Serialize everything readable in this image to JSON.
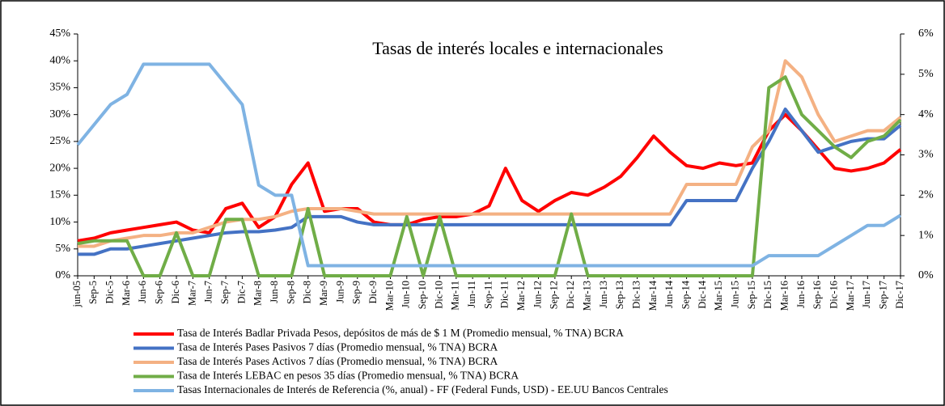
{
  "chart_data": {
    "type": "line",
    "title": "Tasas de interés locales e internacionales",
    "categories": [
      "jun-05",
      "Sep-5",
      "Dic-5",
      "Mar-6",
      "Jun-6",
      "Sep-6",
      "Dic-6",
      "Mar-7",
      "Jun-7",
      "Sep-7",
      "Dic-7",
      "Mar-8",
      "Jun-8",
      "Sep-8",
      "Dic-8",
      "Mar-9",
      "Jun-9",
      "Sep-9",
      "Dic-9",
      "Mar-10",
      "Jun-10",
      "Sep-10",
      "Dic-10",
      "Mar-11",
      "Jun-11",
      "Sep-11",
      "Dic-11",
      "Mar-12",
      "Jun-12",
      "Sep-12",
      "Dic-12",
      "Mar-13",
      "Jun-13",
      "Sep-13",
      "Dic-13",
      "Mar-14",
      "Jun-14",
      "Sep-14",
      "Dic-14",
      "Mar-15",
      "Jun-15",
      "Sep-15",
      "Dic-15",
      "Mar-16",
      "Jun-16",
      "Sep-16",
      "Dic-16",
      "Mar-17",
      "Jun-17",
      "Sep-17",
      "Dic-17"
    ],
    "series": [
      {
        "name": "Tasa de Interés Badlar Privada Pesos, depósitos de más de $ 1 M  (Promedio mensual, % TNA) BCRA",
        "color": "#ff0000",
        "values": [
          6.5,
          7,
          8,
          8.5,
          9,
          9.5,
          10,
          8.5,
          8,
          12.5,
          13.5,
          9,
          11,
          17,
          21,
          12,
          12.5,
          12.5,
          10,
          9.5,
          9.5,
          10.5,
          11,
          11,
          11.5,
          13,
          20,
          14,
          12,
          14,
          15.5,
          15,
          16.5,
          18.5,
          22,
          26,
          23,
          20.5,
          20,
          21,
          20.5,
          21,
          27,
          30,
          27,
          23.5,
          20,
          19.5,
          20,
          21,
          23.5
        ]
      },
      {
        "name": "Tasa de Interés Pases Pasivos 7 días (Promedio mensual, % TNA) BCRA",
        "color": "#4472c4",
        "values": [
          4,
          4,
          5,
          5,
          5.5,
          6,
          6.5,
          7,
          7.5,
          8,
          8.2,
          8.2,
          8.5,
          9,
          11,
          11,
          11,
          10,
          9.5,
          9.5,
          9.5,
          9.5,
          9.5,
          9.5,
          9.5,
          9.5,
          9.5,
          9.5,
          9.5,
          9.5,
          9.5,
          9.5,
          9.5,
          9.5,
          9.5,
          9.5,
          9.5,
          14,
          14,
          14,
          14,
          20,
          25,
          31,
          27,
          23,
          24,
          25,
          25.5,
          25.5,
          28
        ]
      },
      {
        "name": "Tasa de Interés Pases Activos 7 días (Promedio mensual, % TNA) BCRA",
        "color": "#f4b183",
        "values": [
          5.5,
          5.5,
          6.5,
          7,
          7.5,
          7.5,
          8,
          8,
          9,
          10,
          10.5,
          10.5,
          11,
          12,
          12.5,
          12.5,
          12.5,
          12,
          11.5,
          11.5,
          11.5,
          11.5,
          11.5,
          11.5,
          11.5,
          11.5,
          11.5,
          11.5,
          11.5,
          11.5,
          11.5,
          11.5,
          11.5,
          11.5,
          11.5,
          11.5,
          11.5,
          17,
          17,
          17,
          17,
          24,
          27,
          40,
          37,
          30,
          25,
          26,
          27,
          27,
          29.5
        ]
      },
      {
        "name": "Tasa de Interés LEBAC en pesos 35 días (Promedio mensual, % TNA) BCRA",
        "color": "#70ad47",
        "values": [
          6,
          6.5,
          6.5,
          6.5,
          0,
          0,
          8,
          0,
          0,
          10.5,
          10.5,
          0,
          0,
          0,
          12.5,
          0,
          0,
          0,
          0,
          0,
          11,
          0,
          11,
          0,
          0,
          0,
          0,
          0,
          0,
          0,
          11.5,
          0,
          0,
          0,
          0,
          0,
          0,
          0,
          0,
          0,
          0,
          0,
          35,
          37,
          30,
          27,
          24,
          22,
          25,
          26,
          29
        ]
      },
      {
        "name": "Tasas Internacionales de Interés de Referencia (%, anual) - FF (Federal Funds, USD) - EE.UU  Bancos Centrales",
        "color": "#7fb3e3",
        "axis": "y2",
        "values": [
          3.25,
          3.75,
          4.25,
          4.5,
          5.25,
          5.25,
          5.25,
          5.25,
          5.25,
          4.75,
          4.25,
          2.25,
          2,
          2,
          0.25,
          0.25,
          0.25,
          0.25,
          0.25,
          0.25,
          0.25,
          0.25,
          0.25,
          0.25,
          0.25,
          0.25,
          0.25,
          0.25,
          0.25,
          0.25,
          0.25,
          0.25,
          0.25,
          0.25,
          0.25,
          0.25,
          0.25,
          0.25,
          0.25,
          0.25,
          0.25,
          0.25,
          0.5,
          0.5,
          0.5,
          0.5,
          0.75,
          1,
          1.25,
          1.25,
          1.5
        ]
      }
    ],
    "ylim": [
      0,
      45
    ],
    "yticks": [
      {
        "value": 0,
        "label": "0%"
      },
      {
        "value": 5,
        "label": "5%"
      },
      {
        "value": 10,
        "label": "10%"
      },
      {
        "value": 15,
        "label": "15%"
      },
      {
        "value": 20,
        "label": "20%"
      },
      {
        "value": 25,
        "label": "25%"
      },
      {
        "value": 30,
        "label": "30%"
      },
      {
        "value": 35,
        "label": "35%"
      },
      {
        "value": 40,
        "label": "40%"
      },
      {
        "value": 45,
        "label": "45%"
      }
    ],
    "y2lim": [
      0,
      6
    ],
    "y2ticks": [
      {
        "value": 0,
        "label": "0%"
      },
      {
        "value": 1,
        "label": "1%"
      },
      {
        "value": 2,
        "label": "2%"
      },
      {
        "value": 3,
        "label": "3%"
      },
      {
        "value": 4,
        "label": "4%"
      },
      {
        "value": 5,
        "label": "5%"
      },
      {
        "value": 6,
        "label": "6%"
      }
    ]
  }
}
